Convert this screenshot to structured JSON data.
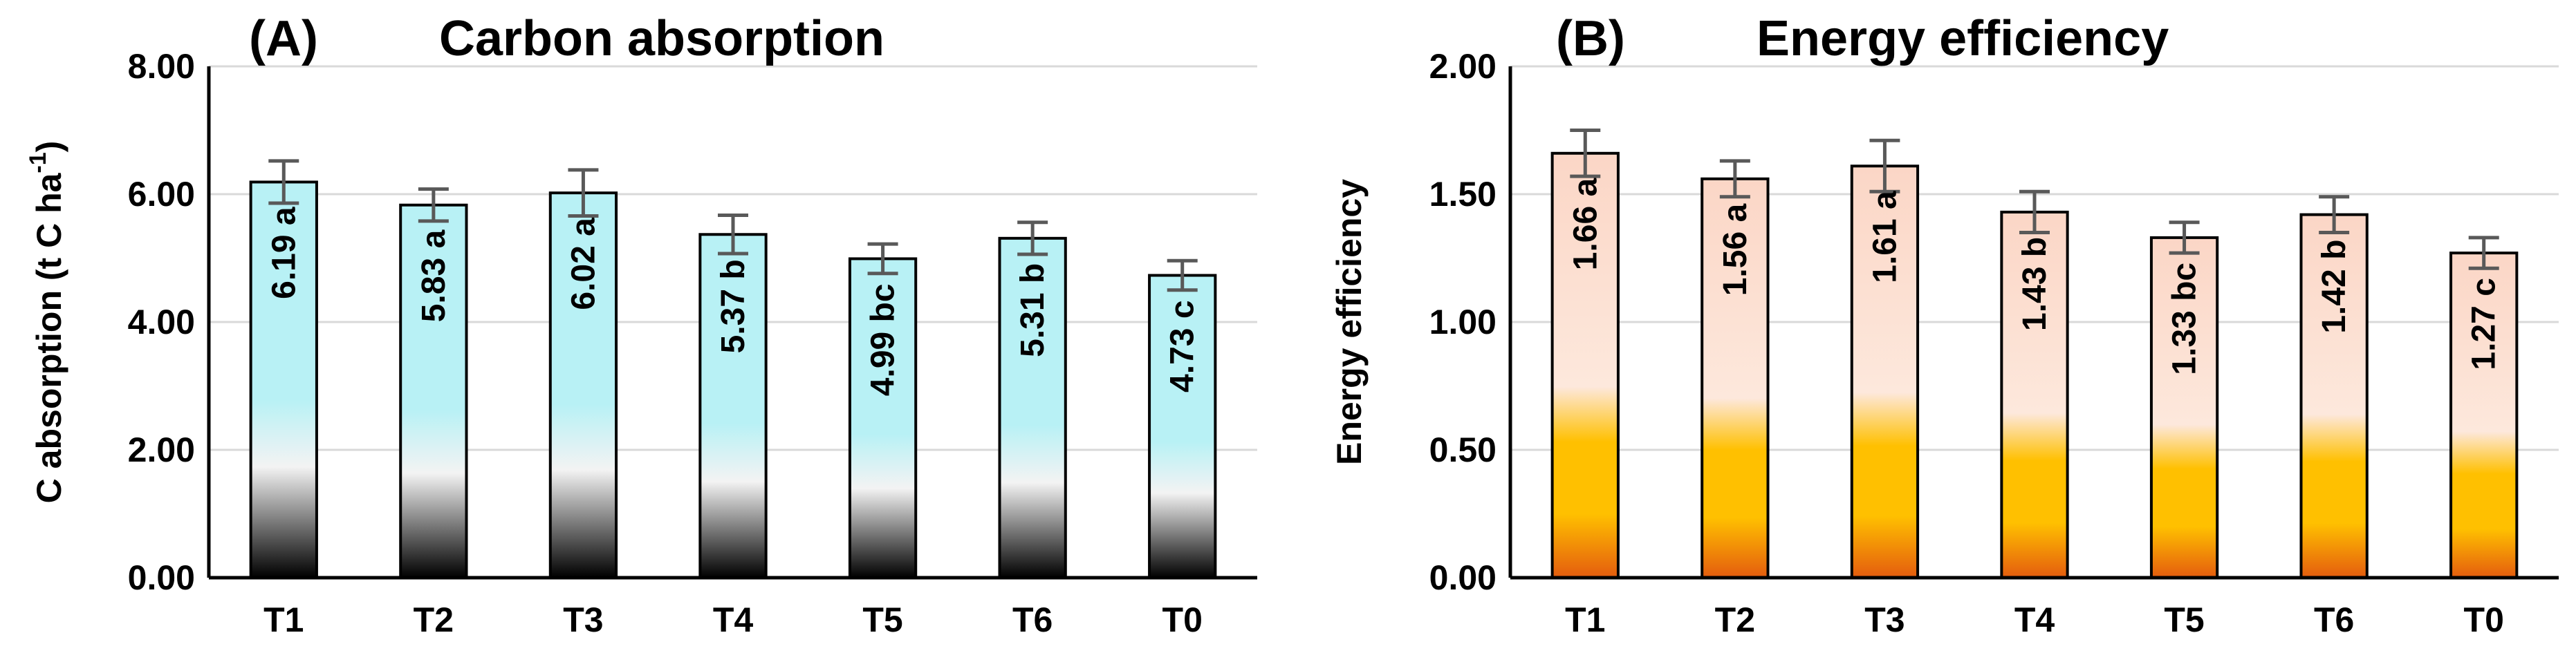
{
  "chart_data": [
    {
      "type": "bar",
      "panel": "(A)",
      "title": "Carbon absorption",
      "ylabel": "C absorption  (t C ha",
      "ylabel_sup": "-1",
      "ylabel_end": ")",
      "ylim": [
        0,
        8
      ],
      "yticks": [
        "0.00",
        "2.00",
        "4.00",
        "6.00",
        "8.00"
      ],
      "categories": [
        "T1",
        "T2",
        "T3",
        "T4",
        "T5",
        "T6",
        "T0"
      ],
      "values": [
        6.19,
        5.83,
        6.02,
        5.37,
        4.99,
        5.31,
        4.73
      ],
      "errors": [
        0.33,
        0.25,
        0.36,
        0.3,
        0.23,
        0.25,
        0.23
      ],
      "labels": [
        "6.19 a",
        "5.83 a",
        "6.02 a",
        "5.37 b",
        "4.99 bc",
        "5.31 b",
        "4.73 c"
      ],
      "grid": true,
      "colors": {
        "top": "#b8f1f5",
        "mid": "#f3f3f3",
        "bottom": "#000000"
      }
    },
    {
      "type": "bar",
      "panel": "(B)",
      "title": "Energy efficiency",
      "ylabel": "Energy efficiency",
      "ylim": [
        0,
        2
      ],
      "yticks": [
        "0.00",
        "0.50",
        "1.00",
        "1.50",
        "2.00"
      ],
      "categories": [
        "T1",
        "T2",
        "T3",
        "T4",
        "T5",
        "T6",
        "T0"
      ],
      "values": [
        1.66,
        1.56,
        1.61,
        1.43,
        1.33,
        1.42,
        1.27
      ],
      "errors": [
        0.09,
        0.07,
        0.1,
        0.08,
        0.06,
        0.07,
        0.06
      ],
      "labels": [
        "1.66 a",
        "1.56 a",
        "1.61 a",
        "1.43 b",
        "1.33 bc",
        "1.42 b",
        "1.27 c"
      ],
      "grid": true,
      "colors": {
        "top": "#fbd6c6",
        "mid": "#fde8dc",
        "accent": "#ffc000",
        "bottom": "#e45c0e"
      }
    }
  ]
}
